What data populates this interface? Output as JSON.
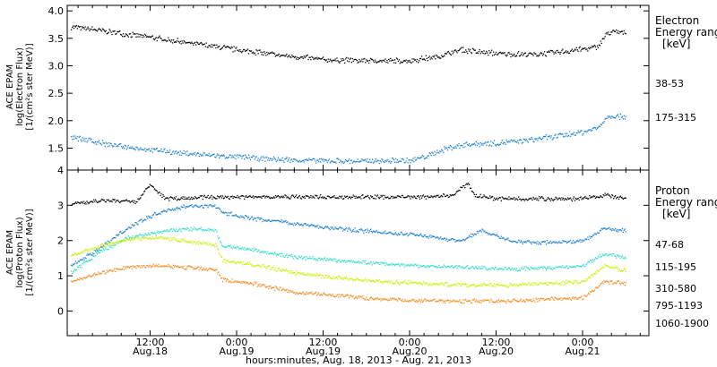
{
  "xlabel": "hours:minutes, Aug. 18, 2013 - Aug. 21, 2013",
  "time_ticks": [
    {
      "top": "12:00",
      "bottom": "Aug.18",
      "hour": 12
    },
    {
      "top": "0:00",
      "bottom": "Aug.19",
      "hour": 24
    },
    {
      "top": "12:00",
      "bottom": "Aug.19",
      "hour": 36
    },
    {
      "top": "0:00",
      "bottom": "Aug.20",
      "hour": 48
    },
    {
      "top": "12:00",
      "bottom": "Aug.20",
      "hour": 60
    },
    {
      "top": "0:00",
      "bottom": "Aug.21",
      "hour": 72
    }
  ],
  "x_units": "hours since Aug. 18, 2013 00:00",
  "chart_data": [
    {
      "type": "scatter",
      "ylabel_lines": [
        "ACE EPAM",
        "log(Electron Flux)",
        "[1/(cm²s ster MeV)]"
      ],
      "ylim": [
        1.1,
        4.1
      ],
      "yticks": [
        "1.5",
        "2.0",
        "2.5",
        "3.0",
        "3.5",
        "4.0"
      ],
      "legend_title": [
        "Electron",
        "Energy range",
        "[keV]"
      ],
      "series": [
        {
          "name": "38-53",
          "color": "#000000",
          "points": [
            [
              1,
              3.72
            ],
            [
              8,
              3.6
            ],
            [
              16,
              3.45
            ],
            [
              24,
              3.3
            ],
            [
              30,
              3.2
            ],
            [
              36,
              3.12
            ],
            [
              42,
              3.1
            ],
            [
              48,
              3.1
            ],
            [
              52,
              3.18
            ],
            [
              55,
              3.3
            ],
            [
              58,
              3.25
            ],
            [
              62,
              3.22
            ],
            [
              66,
              3.22
            ],
            [
              70,
              3.28
            ],
            [
              74,
              3.35
            ],
            [
              75.5,
              3.62
            ],
            [
              78,
              3.62
            ]
          ]
        },
        {
          "name": "175-315",
          "color": "#1a7fd4",
          "points": [
            [
              1,
              1.72
            ],
            [
              6,
              1.58
            ],
            [
              12,
              1.48
            ],
            [
              18,
              1.4
            ],
            [
              24,
              1.35
            ],
            [
              30,
              1.3
            ],
            [
              36,
              1.28
            ],
            [
              42,
              1.27
            ],
            [
              48,
              1.28
            ],
            [
              50,
              1.35
            ],
            [
              53,
              1.5
            ],
            [
              56,
              1.58
            ],
            [
              60,
              1.6
            ],
            [
              64,
              1.65
            ],
            [
              68,
              1.72
            ],
            [
              72,
              1.8
            ],
            [
              74,
              1.88
            ],
            [
              75.5,
              2.1
            ],
            [
              78,
              2.08
            ]
          ]
        }
      ]
    },
    {
      "type": "scatter",
      "ylabel_lines": [
        "ACE EPAM",
        "log(Proton Flux)",
        "[1/(cm²s ster MeV)]"
      ],
      "ylim": [
        -0.7,
        4.0
      ],
      "yticks": [
        "0",
        "1",
        "2",
        "3",
        "4"
      ],
      "legend_title": [
        "Proton",
        "Energy range",
        "[keV]"
      ],
      "series": [
        {
          "name": "47-68",
          "color": "#000000",
          "points": [
            [
              1,
              3.05
            ],
            [
              6,
              3.15
            ],
            [
              10,
              3.1
            ],
            [
              12,
              3.6
            ],
            [
              14,
              3.2
            ],
            [
              20,
              3.25
            ],
            [
              26,
              3.25
            ],
            [
              32,
              3.25
            ],
            [
              38,
              3.25
            ],
            [
              44,
              3.25
            ],
            [
              50,
              3.25
            ],
            [
              54,
              3.3
            ],
            [
              56,
              3.65
            ],
            [
              57,
              3.3
            ],
            [
              60,
              3.2
            ],
            [
              66,
              3.2
            ],
            [
              72,
              3.2
            ],
            [
              75,
              3.3
            ],
            [
              78,
              3.2
            ]
          ]
        },
        {
          "name": "115-195",
          "color": "#1a7fd4",
          "points": [
            [
              1,
              1.3
            ],
            [
              5,
              1.8
            ],
            [
              9,
              2.4
            ],
            [
              13,
              2.8
            ],
            [
              17,
              3.0
            ],
            [
              21,
              3.0
            ],
            [
              22,
              2.8
            ],
            [
              26,
              2.65
            ],
            [
              32,
              2.5
            ],
            [
              38,
              2.35
            ],
            [
              44,
              2.25
            ],
            [
              50,
              2.15
            ],
            [
              55,
              2.0
            ],
            [
              58,
              2.3
            ],
            [
              62,
              2.0
            ],
            [
              66,
              1.95
            ],
            [
              72,
              2.0
            ],
            [
              75,
              2.35
            ],
            [
              78,
              2.3
            ]
          ]
        },
        {
          "name": "310-580",
          "color": "#2fdcc8",
          "points": [
            [
              1,
              1.1
            ],
            [
              5,
              1.7
            ],
            [
              9,
              2.1
            ],
            [
              13,
              2.25
            ],
            [
              17,
              2.35
            ],
            [
              21,
              2.3
            ],
            [
              22,
              1.85
            ],
            [
              26,
              1.75
            ],
            [
              32,
              1.55
            ],
            [
              38,
              1.45
            ],
            [
              44,
              1.35
            ],
            [
              50,
              1.3
            ],
            [
              56,
              1.25
            ],
            [
              62,
              1.2
            ],
            [
              68,
              1.25
            ],
            [
              72,
              1.3
            ],
            [
              75,
              1.65
            ],
            [
              78,
              1.5
            ]
          ]
        },
        {
          "name": "795-1193",
          "color": "#c8f000",
          "points": [
            [
              1,
              1.6
            ],
            [
              5,
              1.85
            ],
            [
              9,
              2.05
            ],
            [
              13,
              2.1
            ],
            [
              17,
              2.0
            ],
            [
              21,
              1.9
            ],
            [
              22,
              1.45
            ],
            [
              26,
              1.35
            ],
            [
              32,
              1.1
            ],
            [
              38,
              0.95
            ],
            [
              44,
              0.85
            ],
            [
              50,
              0.8
            ],
            [
              56,
              0.75
            ],
            [
              62,
              0.75
            ],
            [
              68,
              0.8
            ],
            [
              72,
              0.85
            ],
            [
              75,
              1.3
            ],
            [
              78,
              1.15
            ]
          ]
        },
        {
          "name": "1060-1900",
          "color": "#f48a1c",
          "points": [
            [
              1,
              0.85
            ],
            [
              5,
              1.1
            ],
            [
              9,
              1.25
            ],
            [
              13,
              1.3
            ],
            [
              17,
              1.25
            ],
            [
              21,
              1.2
            ],
            [
              22,
              0.9
            ],
            [
              26,
              0.8
            ],
            [
              32,
              0.55
            ],
            [
              38,
              0.45
            ],
            [
              44,
              0.35
            ],
            [
              50,
              0.3
            ],
            [
              56,
              0.3
            ],
            [
              62,
              0.3
            ],
            [
              68,
              0.35
            ],
            [
              72,
              0.4
            ],
            [
              75,
              0.85
            ],
            [
              78,
              0.8
            ]
          ]
        }
      ]
    }
  ]
}
